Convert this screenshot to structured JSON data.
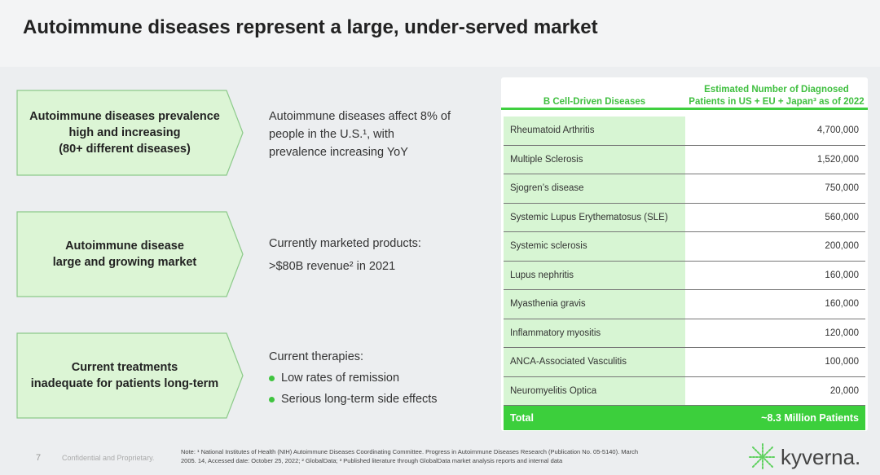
{
  "title": "Autoimmune diseases represent a large, under-served market",
  "rows": [
    {
      "box": [
        "Autoimmune diseases prevalence",
        "high and increasing",
        "(80+ different diseases)"
      ],
      "desc": [
        "Autoimmune diseases affect 8% of",
        "people in the U.S.¹, with",
        "prevalence increasing YoY"
      ]
    },
    {
      "box": [
        "Autoimmune disease",
        "large and growing market"
      ],
      "desc": [
        "Currently marketed products:",
        ">$80B revenue² in 2021"
      ]
    },
    {
      "box": [
        "Current treatments",
        "inadequate for patients long-term"
      ],
      "desc_title": "Current therapies:",
      "bullets": [
        "Low rates of remission",
        "Serious long-term side effects"
      ]
    }
  ],
  "table": {
    "col1": "B Cell-Driven Diseases",
    "col2": [
      "Estimated Number of Diagnosed",
      "Patients in US + EU + Japan³ as of 2022"
    ],
    "rows": [
      {
        "name": "Rheumatoid Arthritis",
        "value": "4,700,000"
      },
      {
        "name": "Multiple Sclerosis",
        "value": "1,520,000"
      },
      {
        "name": "Sjogren’s disease",
        "value": "750,000"
      },
      {
        "name": "Systemic Lupus Erythematosus (SLE)",
        "value": "560,000"
      },
      {
        "name": "Systemic sclerosis",
        "value": "200,000"
      },
      {
        "name": "Lupus nephritis",
        "value": "160,000"
      },
      {
        "name": "Myasthenia gravis",
        "value": "160,000"
      },
      {
        "name": "Inflammatory myositis",
        "value": "120,000"
      },
      {
        "name": "ANCA-Associated Vasculitis",
        "value": "100,000"
      },
      {
        "name": "Neuromyelitis Optica",
        "value": "20,000"
      }
    ],
    "total_label": "Total",
    "total_value": "~8.3 Million Patients"
  },
  "footer": {
    "page": "7",
    "confidential": "Confidential and Proprietary.",
    "note1": "Note: ¹ National Institutes of Health (NIH) Autoimmune Diseases Coordinating Committee. Progress in Autoimmune Diseases Research (Publication No. 05-5140). March",
    "note2": "2005. 14, Accessed date: October 25, 2022; ² GlobalData; ³ Published literature through GlobalData market analysis reports and internal data",
    "logo": "kyverna."
  }
}
